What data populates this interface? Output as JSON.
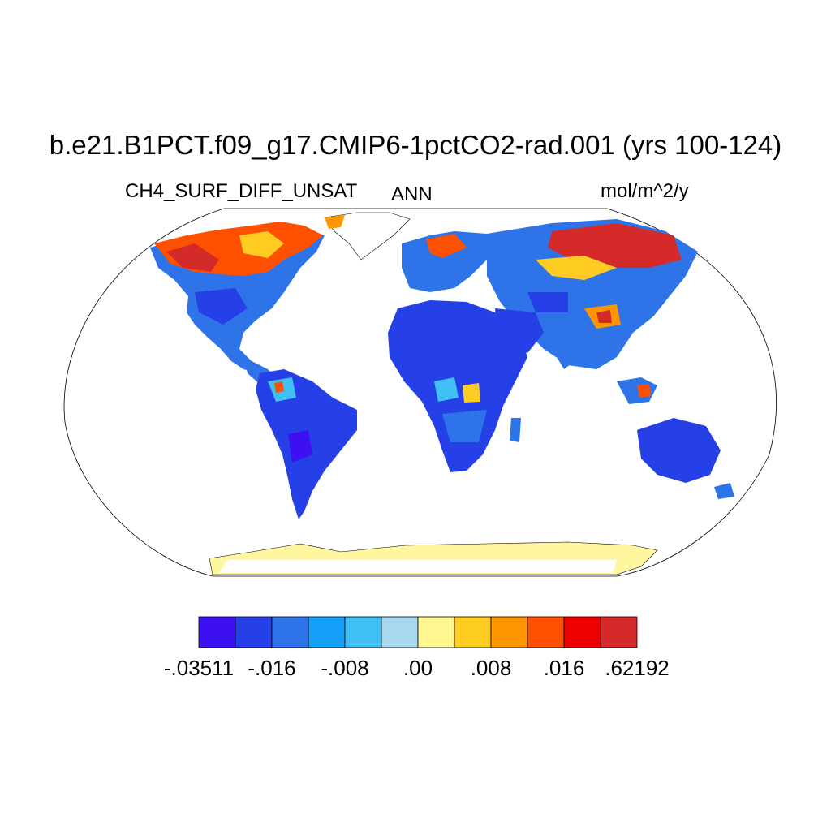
{
  "title": "b.e21.B1PCT.f09_g17.CMIP6-1pctCO2-rad.001 (yrs 100-124)",
  "variable": "CH4_SURF_DIFF_UNSAT",
  "period": "ANN",
  "units": "mol/m^2/y",
  "colorbar": {
    "colors": [
      "#3c10f0",
      "#2440e6",
      "#2e74e8",
      "#14a0f8",
      "#40c0f4",
      "#a8d8f0",
      "#fff690",
      "#ffcc22",
      "#ff9600",
      "#ff5000",
      "#ee0000",
      "#d42a2a"
    ],
    "labels": [
      "-.03511",
      "-.016",
      "-.008",
      ".00",
      ".008",
      ".016",
      ".62192"
    ]
  },
  "legend_colors": {
    "ocean": "#ffffff",
    "coast": "#000000",
    "antarctica": "#fff6a0"
  }
}
